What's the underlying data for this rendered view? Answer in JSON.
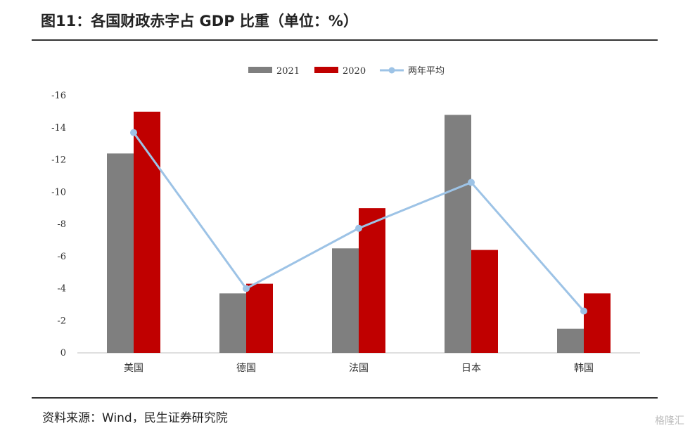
{
  "title": "图11：各国财政赤字占 GDP 比重（单位：%）",
  "source": "资料来源：Wind，民生证券研究院",
  "watermark": "格隆汇",
  "colors": {
    "series_2021": "#7f7f7f",
    "series_2020": "#c00000",
    "avg_line": "#9dc3e6"
  },
  "chart_data": {
    "type": "bar",
    "title": "",
    "xlabel": "",
    "ylabel": "",
    "categories": [
      "美国",
      "德国",
      "法国",
      "日本",
      "韩国"
    ],
    "ylim": [
      0,
      -16
    ],
    "yticks": [
      0,
      -2,
      -4,
      -6,
      -8,
      -10,
      -12,
      -14,
      -16
    ],
    "y_axis_inverted": true,
    "grid": false,
    "legend_position": "top-center",
    "series": [
      {
        "name": "2021",
        "kind": "bar",
        "values": [
          -12.4,
          -3.7,
          -6.5,
          -14.8,
          -1.5
        ]
      },
      {
        "name": "2020",
        "kind": "bar",
        "values": [
          -15.0,
          -4.3,
          -9.0,
          -6.4,
          -3.7
        ]
      },
      {
        "name": "两年平均",
        "kind": "line",
        "values": [
          -13.7,
          -4.0,
          -7.75,
          -10.6,
          -2.6
        ]
      }
    ]
  }
}
